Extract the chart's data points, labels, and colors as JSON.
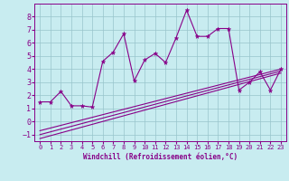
{
  "title": "",
  "xlabel": "Windchill (Refroidissement éolien,°C)",
  "bg_color": "#c8ecf0",
  "line_color": "#880088",
  "grid_color": "#98c4cc",
  "xlim": [
    -0.5,
    23.5
  ],
  "ylim": [
    -1.5,
    9.0
  ],
  "xticks": [
    0,
    1,
    2,
    3,
    4,
    5,
    6,
    7,
    8,
    9,
    10,
    11,
    12,
    13,
    14,
    15,
    16,
    17,
    18,
    19,
    20,
    21,
    22,
    23
  ],
  "yticks": [
    -1,
    0,
    1,
    2,
    3,
    4,
    5,
    6,
    7,
    8
  ],
  "line1_x": [
    0,
    1,
    2,
    3,
    4,
    5,
    6,
    7,
    8,
    9,
    10,
    11,
    12,
    13,
    14,
    15,
    16,
    17,
    18,
    19,
    20,
    21,
    22,
    23
  ],
  "line1_y": [
    1.5,
    1.5,
    2.3,
    1.2,
    1.2,
    1.1,
    4.6,
    5.3,
    6.7,
    3.1,
    4.7,
    5.2,
    4.5,
    6.4,
    8.5,
    6.5,
    6.5,
    7.1,
    7.1,
    2.4,
    3.0,
    3.8,
    2.4,
    4.0
  ],
  "line2_x": [
    0,
    23
  ],
  "line2_y": [
    -1.3,
    3.7
  ],
  "line3_x": [
    0,
    23
  ],
  "line3_y": [
    -1.0,
    3.85
  ],
  "line4_x": [
    0,
    23
  ],
  "line4_y": [
    -0.7,
    4.0
  ],
  "tick_fontsize": 5,
  "xlabel_fontsize": 5.5
}
